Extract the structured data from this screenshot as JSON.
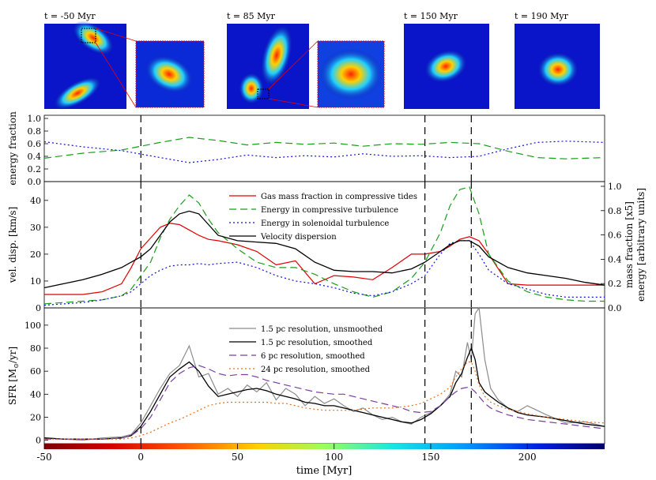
{
  "snapshots": [
    {
      "label": "t = -50 Myr",
      "inset": true
    },
    {
      "label": "t = 85 Myr",
      "inset": true
    },
    {
      "label": "t = 150 Myr",
      "inset": false
    },
    {
      "label": "t = 190 Myr",
      "inset": false
    }
  ],
  "colors": {
    "red": "#e00000",
    "green": "#1a9e1a",
    "blue": "#1010e0",
    "black": "#000000",
    "gray": "#8c8c8c",
    "purple": "#7a3fa0",
    "orange": "#e8701a"
  },
  "events_myr": [
    0,
    147,
    171
  ],
  "chart_data": [
    {
      "type": "line",
      "ylabel": "energy fraction",
      "xlim": [
        -50,
        240
      ],
      "ylim": [
        0,
        1.05
      ],
      "yticks": [
        "0.0",
        "0.2",
        "0.4",
        "0.6",
        "0.8",
        "1.0"
      ],
      "x": [
        -50,
        -30,
        -10,
        10,
        25,
        40,
        55,
        70,
        85,
        100,
        115,
        130,
        145,
        160,
        175,
        190,
        205,
        220,
        240
      ],
      "series": [
        {
          "key": "comp",
          "style": "dashed",
          "values": [
            0.37,
            0.45,
            0.5,
            0.62,
            0.7,
            0.65,
            0.58,
            0.62,
            0.59,
            0.61,
            0.56,
            0.6,
            0.59,
            0.62,
            0.6,
            0.48,
            0.38,
            0.36,
            0.38
          ]
        },
        {
          "key": "sol",
          "style": "dotted",
          "values": [
            0.63,
            0.55,
            0.49,
            0.38,
            0.3,
            0.35,
            0.42,
            0.38,
            0.41,
            0.39,
            0.44,
            0.4,
            0.41,
            0.38,
            0.4,
            0.52,
            0.62,
            0.64,
            0.62
          ]
        }
      ]
    },
    {
      "type": "line",
      "ylabel": "vel. disp. [km/s]",
      "ylabel_right": [
        "mass fraction [x5]",
        "energy [arbitrary units]"
      ],
      "xlim": [
        -50,
        240
      ],
      "ylim": [
        0,
        47
      ],
      "yticks": [
        "0",
        "10",
        "20",
        "30",
        "40"
      ],
      "yticks_right": [
        "0.0",
        "0.2",
        "0.4",
        "0.6",
        "0.8",
        "1.0"
      ],
      "legend": [
        "Gas mass fraction in compressive tides",
        "Energy in compressive turbulence",
        "Energy in solenoidal turbulence",
        "Velocity dispersion"
      ],
      "x": [
        -50,
        -40,
        -30,
        -20,
        -10,
        -5,
        0,
        5,
        10,
        15,
        20,
        25,
        30,
        35,
        40,
        50,
        60,
        70,
        80,
        90,
        100,
        110,
        120,
        130,
        140,
        147,
        155,
        160,
        165,
        170,
        175,
        180,
        190,
        200,
        210,
        220,
        230,
        240
      ],
      "series": [
        {
          "key": "tides",
          "style": "solid",
          "values": [
            5,
            5,
            5,
            6,
            9,
            15,
            22,
            26,
            30,
            31.5,
            31,
            29,
            27,
            25.5,
            25,
            23.5,
            21,
            16,
            17.5,
            9,
            12,
            11.5,
            10.5,
            15,
            20,
            20,
            21,
            23,
            25.5,
            26.5,
            25,
            20,
            9,
            8.5,
            8.5,
            8.5,
            8.5,
            8.5
          ]
        },
        {
          "key": "comp",
          "style": "dashed",
          "values": [
            1.5,
            2,
            2.5,
            3,
            4.5,
            7,
            12,
            17,
            26,
            33,
            38,
            42,
            39,
            33,
            28,
            22,
            17,
            15,
            15,
            12.5,
            9,
            6,
            4,
            6,
            11,
            17,
            28,
            38,
            44,
            45,
            35,
            20,
            10,
            6,
            4,
            3,
            2.5,
            2.5
          ]
        },
        {
          "key": "sol",
          "style": "dotted",
          "values": [
            1,
            1.5,
            2,
            3,
            4.5,
            6,
            9,
            12,
            14,
            15.5,
            16,
            16,
            16.5,
            16,
            16.5,
            17,
            15,
            12,
            10,
            9,
            7.5,
            5.5,
            4.5,
            6,
            9,
            12,
            20,
            24,
            25,
            25,
            20,
            14,
            9,
            7,
            5,
            4,
            4,
            4
          ]
        },
        {
          "key": "disp",
          "style": "solid",
          "values": [
            7.5,
            9,
            10.5,
            12.5,
            15,
            17,
            19,
            22,
            27,
            32,
            35,
            36,
            35,
            31,
            27,
            25,
            24.5,
            24,
            22,
            17,
            14,
            13.5,
            13.5,
            13,
            14.5,
            17,
            21,
            23.5,
            25,
            25,
            23,
            19,
            15,
            13,
            12,
            11,
            9.5,
            8.5
          ]
        }
      ]
    },
    {
      "type": "line",
      "ylabel": "SFR [M",
      "ylabel_sub": "⊙",
      "ylabel_tail": "/yr]",
      "xlabel": "time [Myr]",
      "xlim": [
        -50,
        240
      ],
      "ylim": [
        -3,
        115
      ],
      "yticks": [
        "0",
        "20",
        "40",
        "60",
        "80",
        "100"
      ],
      "xticks": [
        "-50",
        "0",
        "50",
        "100",
        "150",
        "200"
      ],
      "legend": [
        "1.5 pc resolution, unsmoothed",
        "1.5 pc resolution, smoothed",
        "6 pc resolution, smoothed",
        "24 pc resolution, smoothed"
      ],
      "x": [
        -50,
        -40,
        -30,
        -20,
        -10,
        -5,
        0,
        5,
        10,
        15,
        20,
        25,
        30,
        35,
        40,
        45,
        50,
        55,
        60,
        65,
        70,
        75,
        80,
        85,
        90,
        95,
        100,
        105,
        110,
        115,
        120,
        125,
        130,
        135,
        140,
        145,
        150,
        155,
        160,
        163,
        166,
        169,
        171,
        173,
        175,
        178,
        181,
        185,
        190,
        195,
        200,
        210,
        220,
        230,
        240
      ],
      "series": [
        {
          "key": "unsmoothed",
          "style": "solid",
          "values": [
            2,
            1,
            0,
            2,
            3,
            5,
            15,
            30,
            45,
            58,
            65,
            82,
            55,
            58,
            40,
            45,
            38,
            48,
            42,
            50,
            35,
            45,
            40,
            30,
            38,
            32,
            36,
            30,
            25,
            28,
            22,
            18,
            20,
            16,
            14,
            20,
            24,
            30,
            40,
            60,
            55,
            85,
            70,
            110,
            115,
            70,
            45,
            35,
            28,
            25,
            30,
            22,
            15,
            16,
            12
          ]
        },
        {
          "key": "smoothed",
          "style": "solid",
          "values": [
            2,
            1,
            1,
            1,
            2,
            4,
            12,
            25,
            40,
            55,
            62,
            68,
            60,
            47,
            38,
            40,
            42,
            44,
            45,
            43,
            40,
            38,
            36,
            33,
            32,
            30,
            30,
            28,
            26,
            24,
            22,
            20,
            18,
            16,
            15,
            18,
            23,
            30,
            38,
            50,
            58,
            72,
            80,
            70,
            50,
            42,
            38,
            33,
            28,
            24,
            22,
            20,
            17,
            14,
            12
          ]
        },
        {
          "key": "p6",
          "style": "dashed",
          "values": [
            1,
            1,
            1,
            1,
            2,
            4,
            10,
            20,
            35,
            50,
            58,
            63,
            65,
            62,
            58,
            56,
            57,
            57,
            55,
            52,
            50,
            48,
            46,
            44,
            42,
            41,
            40,
            40,
            38,
            36,
            34,
            32,
            30,
            28,
            25,
            24,
            25,
            30,
            38,
            42,
            45,
            46,
            45,
            42,
            38,
            32,
            28,
            25,
            22,
            20,
            18,
            16,
            14,
            12,
            10
          ]
        },
        {
          "key": "p24",
          "style": "dotted",
          "values": [
            1,
            1,
            1,
            1,
            1,
            2,
            4,
            7,
            11,
            15,
            18,
            22,
            26,
            30,
            32,
            33,
            33,
            33,
            33,
            33,
            32,
            32,
            30,
            28,
            27,
            26,
            26,
            26,
            26,
            27,
            28,
            28,
            28,
            29,
            30,
            32,
            36,
            40,
            46,
            55,
            62,
            68,
            68,
            60,
            48,
            38,
            33,
            30,
            27,
            25,
            23,
            20,
            18,
            16,
            15
          ]
        }
      ]
    }
  ]
}
